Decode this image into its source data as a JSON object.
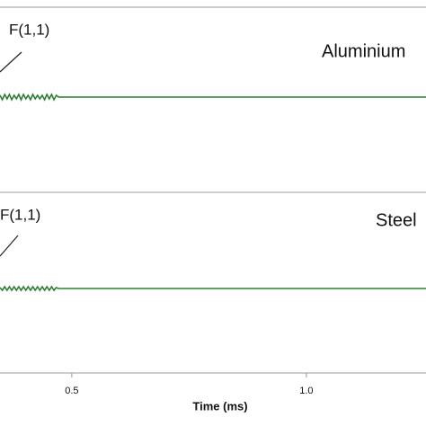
{
  "chart_data": [
    {
      "type": "line",
      "label": "Aluminium",
      "annotation": "F(1,1)",
      "xlim": [
        0.347,
        1.255
      ],
      "ylim": [
        -1,
        1
      ],
      "series": [
        {
          "color": "#2e7d32",
          "x": [
            0.347,
            0.352,
            0.357,
            0.362,
            0.367,
            0.372,
            0.377,
            0.382,
            0.387,
            0.392,
            0.397,
            0.402,
            0.407,
            0.412,
            0.417,
            0.422,
            0.427,
            0.432,
            0.437,
            0.442,
            0.447,
            0.452,
            0.457,
            0.462,
            0.467,
            0.472,
            0.6,
            0.8,
            1.0,
            1.2,
            1.255
          ],
          "values": [
            0.02,
            -0.03,
            0.03,
            -0.02,
            0.03,
            -0.03,
            0.02,
            -0.02,
            0.03,
            -0.03,
            0.03,
            -0.02,
            0.02,
            -0.03,
            0.03,
            -0.02,
            0.02,
            -0.02,
            0.02,
            -0.03,
            0.03,
            -0.02,
            0.03,
            -0.03,
            0.02,
            0,
            0,
            0,
            0,
            0,
            0
          ]
        }
      ]
    },
    {
      "type": "line",
      "label": "Steel",
      "annotation": "F(1,1)",
      "xlabel": "Time (ms)",
      "xlim": [
        0.347,
        1.255
      ],
      "ylim": [
        -1,
        1
      ],
      "xticks": [
        0.5,
        {
          "value": 1.0,
          "label": "1.0"
        }
      ],
      "series": [
        {
          "color": "#2e7d32",
          "x": [
            0.347,
            0.352,
            0.357,
            0.362,
            0.367,
            0.372,
            0.377,
            0.382,
            0.387,
            0.392,
            0.397,
            0.402,
            0.407,
            0.412,
            0.417,
            0.422,
            0.427,
            0.432,
            0.437,
            0.442,
            0.447,
            0.452,
            0.457,
            0.462,
            0.467,
            0.472,
            0.6,
            0.8,
            1.0,
            1.2,
            1.255
          ],
          "values": [
            0.01,
            -0.02,
            0.02,
            -0.02,
            0.02,
            -0.02,
            0.02,
            -0.02,
            0.02,
            -0.02,
            0.02,
            -0.02,
            0.02,
            -0.02,
            0.02,
            -0.02,
            0.02,
            -0.02,
            0.02,
            -0.02,
            0.02,
            -0.02,
            0.02,
            -0.02,
            0.01,
            0,
            0,
            0,
            0,
            0,
            0
          ]
        }
      ]
    }
  ]
}
